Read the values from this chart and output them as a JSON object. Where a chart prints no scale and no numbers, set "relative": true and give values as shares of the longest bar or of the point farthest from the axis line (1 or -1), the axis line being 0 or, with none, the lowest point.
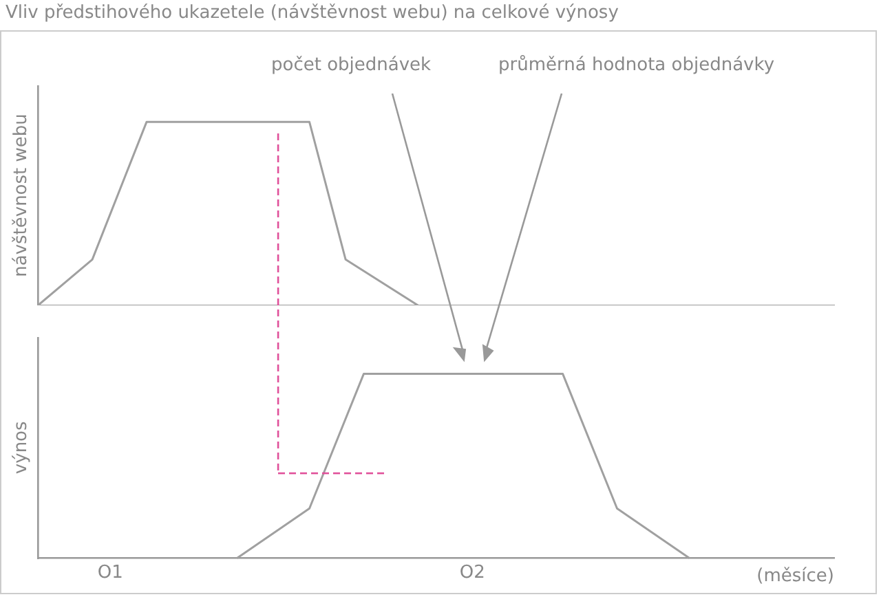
{
  "chart_data": [
    {
      "type": "line",
      "title": "Vliv předstihového ukazetele (návštěvnost webu) na celkové výnosy",
      "ylabel": "návštěvnost webu",
      "relative": true,
      "categories": [
        null,
        null,
        null,
        null,
        null,
        null,
        null,
        null,
        null,
        null,
        null,
        null,
        null,
        null,
        null,
        null,
        null,
        null,
        null,
        null,
        null,
        null,
        null,
        null,
        null,
        null,
        null,
        null,
        null,
        null,
        null,
        null,
        null,
        null,
        null,
        null,
        null,
        null,
        null,
        null,
        null,
        null,
        null,
        null,
        null
      ],
      "series": [
        {
          "color": "#a0a0a0",
          "values": [
            0,
            null,
            null,
            0.25,
            null,
            null,
            1,
            null,
            null,
            null,
            null,
            null,
            null,
            null,
            null,
            1,
            null,
            0.25,
            null,
            null,
            null,
            0,
            null,
            null,
            null,
            null,
            null,
            null,
            null,
            null,
            null,
            null,
            null,
            null,
            null,
            null,
            null,
            null,
            null,
            null,
            null,
            null,
            null,
            null,
            null
          ]
        }
      ]
    },
    {
      "type": "line",
      "ylabel": "výnos",
      "xlabel": "(měsíce)",
      "relative": true,
      "categories": [
        null,
        null,
        null,
        null,
        "O1",
        null,
        null,
        null,
        null,
        null,
        null,
        null,
        null,
        null,
        null,
        null,
        null,
        null,
        null,
        null,
        null,
        null,
        null,
        null,
        "O2",
        null,
        null,
        null,
        null,
        null,
        null,
        null,
        null,
        null,
        null,
        null,
        null,
        null,
        null,
        null,
        null,
        null,
        null,
        null,
        null
      ],
      "annotations": [
        "počet objednávek",
        "průměrná hodnota objednávky"
      ],
      "series": [
        {
          "color": "#a0a0a0",
          "values": [
            null,
            null,
            null,
            null,
            null,
            null,
            null,
            null,
            null,
            null,
            null,
            0,
            null,
            null,
            null,
            0.27,
            null,
            null,
            1,
            null,
            null,
            null,
            null,
            null,
            null,
            null,
            null,
            null,
            null,
            1,
            null,
            null,
            0.27,
            null,
            null,
            null,
            0,
            null,
            null,
            null,
            null,
            null,
            null,
            null,
            null
          ]
        }
      ]
    }
  ]
}
